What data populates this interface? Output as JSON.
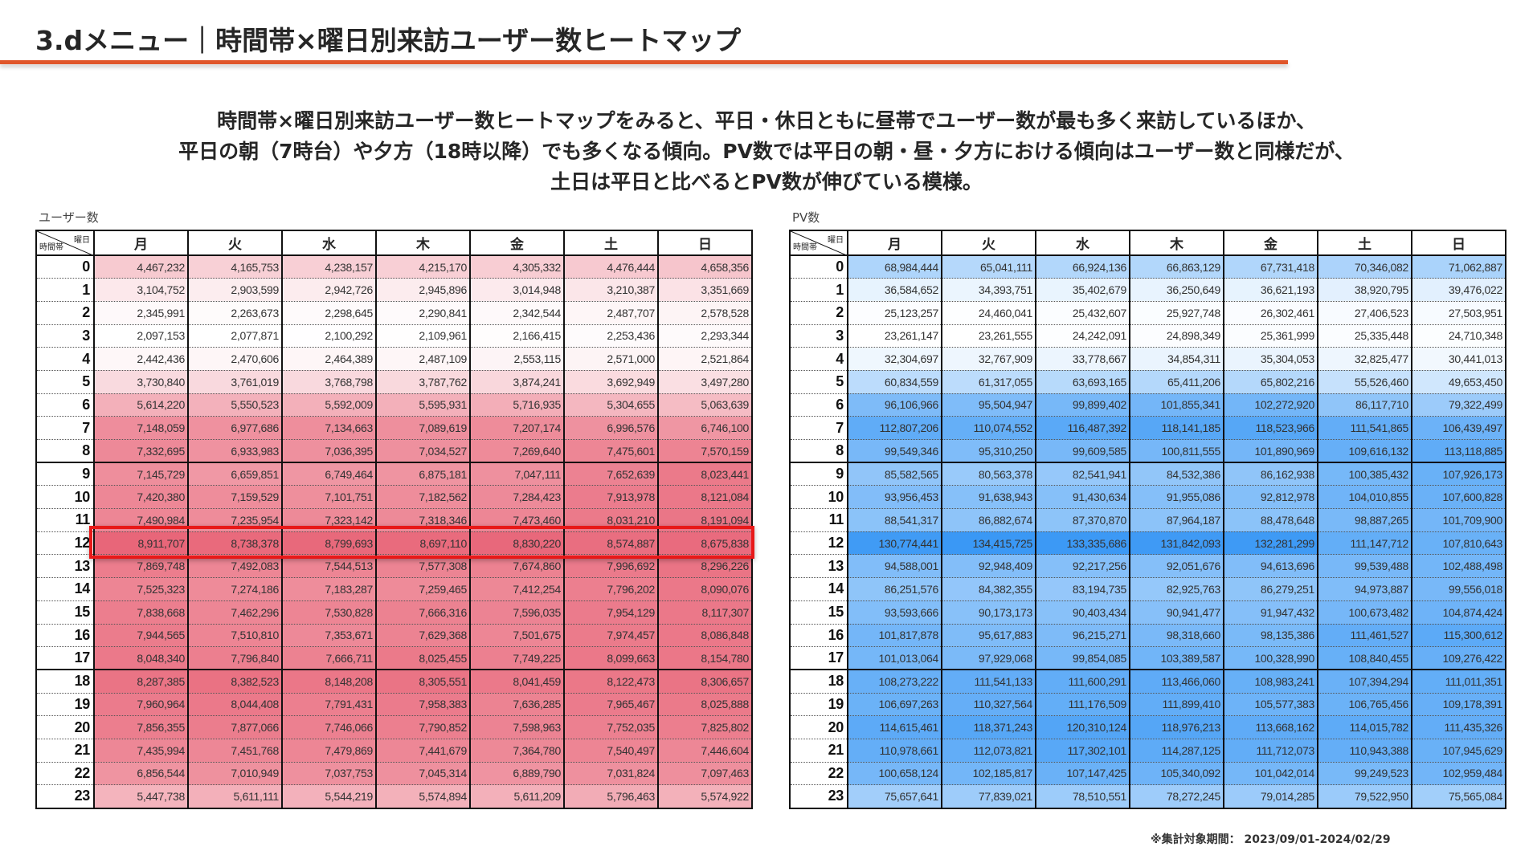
{
  "header": {
    "title": "3.dメニュー｜時間帯×曜日別来訪ユーザー数ヒートマップ"
  },
  "summary": {
    "lines": [
      "時間帯×曜日別来訪ユーザー数ヒートマップをみると、平日・休日ともに昼帯でユーザー数が最も多く来訪しているほか、",
      "平日の朝（7時台）や夕方（18時以降）でも多くなる傾向。PV数では平日の朝・昼・夕方における傾向はユーザー数と同様だが、",
      "土日は平日と比べるとPV数が伸びている模様。"
    ]
  },
  "corner": {
    "top": "曜日",
    "bottom": "時間帯"
  },
  "days": [
    "月",
    "火",
    "水",
    "木",
    "金",
    "土",
    "日"
  ],
  "hours": [
    "0",
    "1",
    "2",
    "3",
    "4",
    "5",
    "6",
    "7",
    "8",
    "9",
    "10",
    "11",
    "12",
    "13",
    "14",
    "15",
    "16",
    "17",
    "18",
    "19",
    "20",
    "21",
    "22",
    "23"
  ],
  "highlight_row": "12",
  "colors": {
    "users_max": "#e86679",
    "pv_max": "#3a98f5",
    "accent": "#e0562a",
    "highlight": "#e81818"
  },
  "users": {
    "label": "ユーザー数",
    "rows": [
      [
        "4,467,232",
        "4,165,753",
        "4,238,157",
        "4,215,170",
        "4,305,332",
        "4,476,444",
        "4,658,356"
      ],
      [
        "3,104,752",
        "2,903,599",
        "2,942,726",
        "2,945,896",
        "3,014,948",
        "3,210,387",
        "3,351,669"
      ],
      [
        "2,345,991",
        "2,263,673",
        "2,298,645",
        "2,290,841",
        "2,342,544",
        "2,487,707",
        "2,578,528"
      ],
      [
        "2,097,153",
        "2,077,871",
        "2,100,292",
        "2,109,961",
        "2,166,415",
        "2,253,436",
        "2,293,344"
      ],
      [
        "2,442,436",
        "2,470,606",
        "2,464,389",
        "2,487,109",
        "2,553,115",
        "2,571,000",
        "2,521,864"
      ],
      [
        "3,730,840",
        "3,761,019",
        "3,768,798",
        "3,787,762",
        "3,874,241",
        "3,692,949",
        "3,497,280"
      ],
      [
        "5,614,220",
        "5,550,523",
        "5,592,009",
        "5,595,931",
        "5,716,935",
        "5,304,655",
        "5,063,639"
      ],
      [
        "7,148,059",
        "6,977,686",
        "7,134,663",
        "7,089,619",
        "7,207,174",
        "6,996,576",
        "6,746,100"
      ],
      [
        "7,332,695",
        "6,933,983",
        "7,036,395",
        "7,034,527",
        "7,269,640",
        "7,475,601",
        "7,570,159"
      ],
      [
        "7,145,729",
        "6,659,851",
        "6,749,464",
        "6,875,181",
        "7,047,111",
        "7,652,639",
        "8,023,441"
      ],
      [
        "7,420,380",
        "7,159,529",
        "7,101,751",
        "7,182,562",
        "7,284,423",
        "7,913,978",
        "8,121,084"
      ],
      [
        "7,490,984",
        "7,235,954",
        "7,323,142",
        "7,318,346",
        "7,473,460",
        "8,031,210",
        "8,191,094"
      ],
      [
        "8,911,707",
        "8,738,378",
        "8,799,693",
        "8,697,110",
        "8,830,220",
        "8,574,887",
        "8,675,838"
      ],
      [
        "7,869,748",
        "7,492,083",
        "7,544,513",
        "7,577,308",
        "7,674,860",
        "7,996,692",
        "8,296,226"
      ],
      [
        "7,525,323",
        "7,274,186",
        "7,183,287",
        "7,259,465",
        "7,412,254",
        "7,796,202",
        "8,090,076"
      ],
      [
        "7,838,668",
        "7,462,296",
        "7,530,828",
        "7,666,316",
        "7,596,035",
        "7,954,129",
        "8,117,307"
      ],
      [
        "7,944,565",
        "7,510,810",
        "7,353,671",
        "7,629,368",
        "7,501,675",
        "7,974,457",
        "8,086,848"
      ],
      [
        "8,048,340",
        "7,796,840",
        "7,666,711",
        "8,025,455",
        "7,749,225",
        "8,099,663",
        "8,154,780"
      ],
      [
        "8,287,385",
        "8,382,523",
        "8,148,208",
        "8,305,551",
        "8,041,459",
        "8,122,473",
        "8,306,657"
      ],
      [
        "7,960,964",
        "8,044,408",
        "7,791,431",
        "7,958,383",
        "7,636,285",
        "7,965,467",
        "8,025,888"
      ],
      [
        "7,856,355",
        "7,877,066",
        "7,746,066",
        "7,790,852",
        "7,598,963",
        "7,752,035",
        "7,825,802"
      ],
      [
        "7,435,994",
        "7,451,768",
        "7,479,869",
        "7,441,679",
        "7,364,780",
        "7,540,497",
        "7,446,604"
      ],
      [
        "6,856,544",
        "7,010,949",
        "7,037,753",
        "7,045,314",
        "6,889,790",
        "7,031,824",
        "7,097,463"
      ],
      [
        "5,447,738",
        "5,611,111",
        "5,544,219",
        "5,574,894",
        "5,611,209",
        "5,796,463",
        "5,574,922"
      ]
    ]
  },
  "pv": {
    "label": "PV数",
    "rows": [
      [
        "68,984,444",
        "65,041,111",
        "66,924,136",
        "66,863,129",
        "67,731,418",
        "70,346,082",
        "71,062,887"
      ],
      [
        "36,584,652",
        "34,393,751",
        "35,402,679",
        "36,250,649",
        "36,621,193",
        "38,920,795",
        "39,476,022"
      ],
      [
        "25,123,257",
        "24,460,041",
        "25,432,607",
        "25,927,748",
        "26,302,461",
        "27,406,523",
        "27,503,951"
      ],
      [
        "23,261,147",
        "23,261,555",
        "24,242,091",
        "24,898,349",
        "25,361,999",
        "25,335,448",
        "24,710,348"
      ],
      [
        "32,304,697",
        "32,767,909",
        "33,778,667",
        "34,854,311",
        "35,304,053",
        "32,825,477",
        "30,441,013"
      ],
      [
        "60,834,559",
        "61,317,055",
        "63,693,165",
        "65,411,206",
        "65,802,216",
        "55,526,460",
        "49,653,450"
      ],
      [
        "96,106,966",
        "95,504,947",
        "99,899,402",
        "101,855,341",
        "102,272,920",
        "86,117,710",
        "79,322,499"
      ],
      [
        "112,807,206",
        "110,074,552",
        "116,487,392",
        "118,141,185",
        "118,523,966",
        "111,541,865",
        "106,439,497"
      ],
      [
        "99,549,346",
        "95,310,250",
        "99,609,585",
        "100,811,555",
        "101,890,969",
        "109,616,132",
        "113,118,885"
      ],
      [
        "85,582,565",
        "80,563,378",
        "82,541,941",
        "84,532,386",
        "86,162,938",
        "100,385,432",
        "107,926,173"
      ],
      [
        "93,956,453",
        "91,638,943",
        "91,430,634",
        "91,955,086",
        "92,812,978",
        "104,010,855",
        "107,600,828"
      ],
      [
        "88,541,317",
        "86,882,674",
        "87,370,870",
        "87,964,187",
        "88,478,648",
        "98,887,265",
        "101,709,900"
      ],
      [
        "130,774,441",
        "134,415,725",
        "133,335,686",
        "131,842,093",
        "132,281,299",
        "111,147,712",
        "107,810,643"
      ],
      [
        "94,588,001",
        "92,948,409",
        "92,217,256",
        "92,051,676",
        "94,613,696",
        "99,539,488",
        "102,488,498"
      ],
      [
        "86,251,576",
        "84,382,355",
        "83,194,735",
        "82,925,763",
        "86,279,251",
        "94,973,887",
        "99,556,018"
      ],
      [
        "93,593,666",
        "90,173,173",
        "90,403,434",
        "90,941,477",
        "91,947,432",
        "100,673,482",
        "104,874,424"
      ],
      [
        "101,817,878",
        "95,617,883",
        "96,215,271",
        "98,318,660",
        "98,135,386",
        "111,461,527",
        "115,300,612"
      ],
      [
        "101,013,064",
        "97,929,068",
        "99,854,085",
        "103,389,587",
        "100,328,990",
        "108,840,455",
        "109,276,422"
      ],
      [
        "108,273,222",
        "111,541,133",
        "111,600,291",
        "113,466,060",
        "108,983,241",
        "107,394,294",
        "111,011,351"
      ],
      [
        "106,697,263",
        "110,327,564",
        "111,176,509",
        "111,899,410",
        "105,577,383",
        "106,765,456",
        "109,178,391"
      ],
      [
        "114,615,461",
        "118,371,243",
        "120,310,124",
        "118,976,213",
        "113,668,162",
        "114,015,782",
        "111,435,326"
      ],
      [
        "110,978,661",
        "112,073,821",
        "117,302,101",
        "114,287,125",
        "111,712,073",
        "110,943,388",
        "107,945,629"
      ],
      [
        "100,658,124",
        "102,185,817",
        "107,147,425",
        "105,340,092",
        "101,042,014",
        "99,249,523",
        "102,959,484"
      ],
      [
        "75,657,641",
        "77,839,021",
        "78,510,551",
        "78,272,245",
        "79,014,285",
        "79,522,950",
        "75,565,084"
      ]
    ]
  },
  "footnote": "※集計対象期間： 2023/09/01-2024/02/29"
}
